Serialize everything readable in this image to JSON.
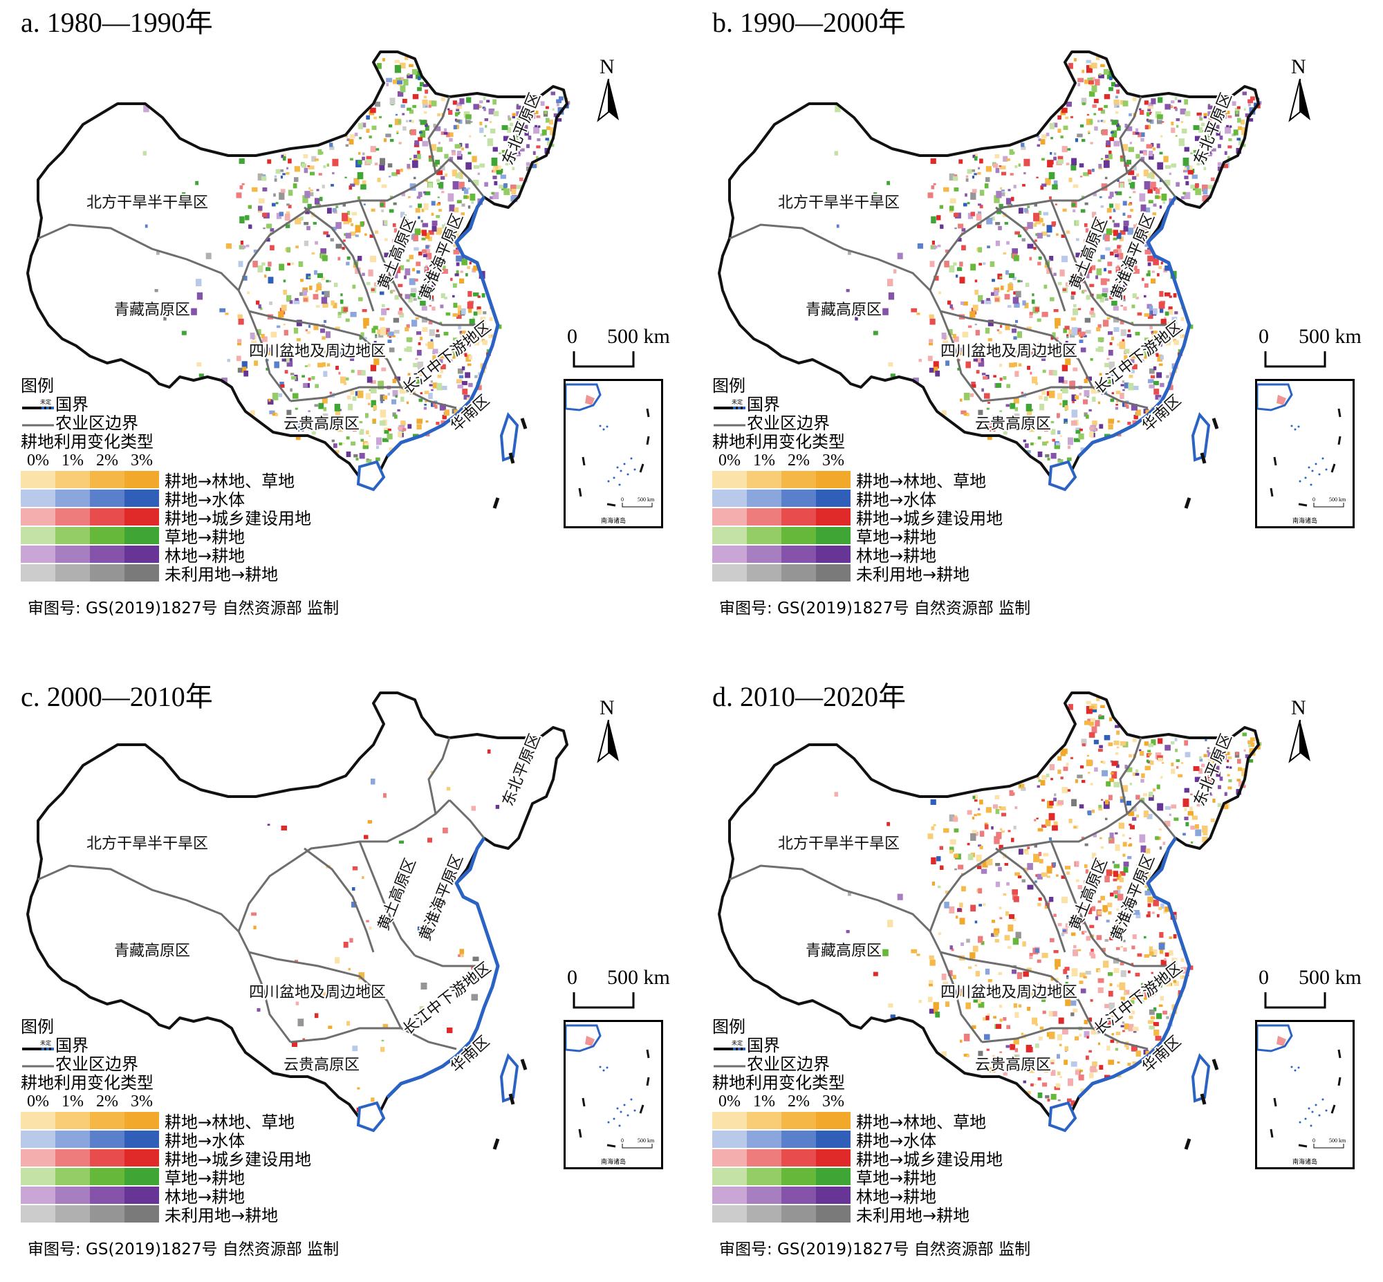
{
  "panels": [
    {
      "title": "a. 1980—1990年"
    },
    {
      "title": "b. 1990—2000年"
    },
    {
      "title": "c. 2000—2010年"
    },
    {
      "title": "d. 2010—2020年"
    }
  ],
  "regions": [
    "北方干旱半干旱区",
    "青藏高原区",
    "黄土高原区",
    "黄淮海平原区",
    "东北平原区",
    "四川盆地及周边地区",
    "长江中下游地区",
    "云贵高原区",
    "华南区"
  ],
  "legend": {
    "title": "图例",
    "border_undetermined": "未定",
    "national_border": "国界",
    "agri_boundary": "农业区边界",
    "type_title": "耕地利用变化类型",
    "percent_ticks": [
      "0%",
      "1%",
      "2%",
      "3%"
    ],
    "classes": [
      {
        "label": "耕地→林地、草地",
        "colors": [
          "#fbe2a8",
          "#f8cd76",
          "#f5b847",
          "#f2a92b"
        ]
      },
      {
        "label": "耕地→水体",
        "colors": [
          "#b9c9ea",
          "#8aa6dc",
          "#5a80cc",
          "#2f5fb8"
        ]
      },
      {
        "label": "耕地→城乡建设用地",
        "colors": [
          "#f4aeae",
          "#ee7c7c",
          "#e84c4c",
          "#e02a2a"
        ]
      },
      {
        "label": "草地→耕地",
        "colors": [
          "#c4e2a6",
          "#94cc66",
          "#66b83a",
          "#3fa635"
        ]
      },
      {
        "label": "林地→耕地",
        "colors": [
          "#c9a6d6",
          "#a77ec0",
          "#8553a9",
          "#673595"
        ]
      },
      {
        "label": "未利用地→耕地",
        "colors": [
          "#cccccc",
          "#b0b0b0",
          "#959595",
          "#7a7a7a"
        ]
      }
    ]
  },
  "scale": {
    "zero": "0",
    "label": "500 km",
    "inset_label": "500 km",
    "inset_zero": "0"
  },
  "inset_caption": "南海诸岛",
  "north": "N",
  "approval": "审图号: GS(2019)1827号 自然资源部 监制",
  "colors": {
    "border": "#111111",
    "region_border": "#6e6e6e",
    "coast": "#2b63c4"
  }
}
